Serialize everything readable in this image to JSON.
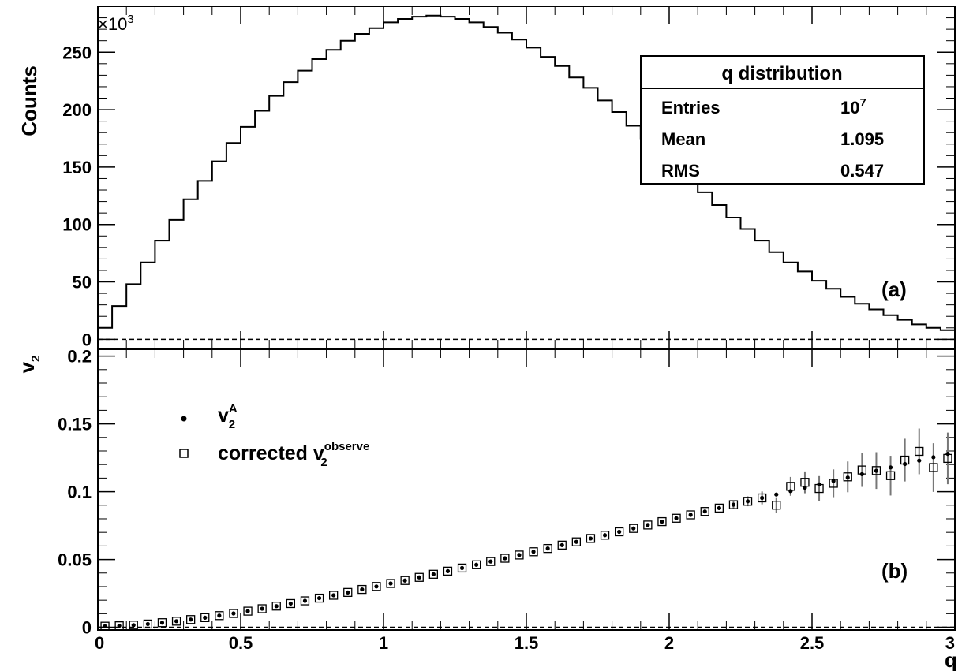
{
  "chart_data": [
    {
      "type": "histogram",
      "panel_label": "(a)",
      "ylabel": "Counts",
      "y_multiplier": "×10",
      "y_multiplier_exp": "3",
      "xlim": [
        0,
        3
      ],
      "ylim": [
        -8,
        290
      ],
      "y_ticks": [
        0,
        50,
        100,
        150,
        200,
        250
      ],
      "y_tick_labels": [
        "0",
        "50",
        "100",
        "150",
        "200",
        "250"
      ],
      "bin_width": 0.05,
      "bin_low_edges": [
        0.0,
        0.05,
        0.1,
        0.15,
        0.2,
        0.25,
        0.3,
        0.35,
        0.4,
        0.45,
        0.5,
        0.55,
        0.6,
        0.65,
        0.7,
        0.75,
        0.8,
        0.85,
        0.9,
        0.95,
        1.0,
        1.05,
        1.1,
        1.15,
        1.2,
        1.25,
        1.3,
        1.35,
        1.4,
        1.45,
        1.5,
        1.55,
        1.6,
        1.65,
        1.7,
        1.75,
        1.8,
        1.85,
        1.9,
        1.95,
        2.0,
        2.05,
        2.1,
        2.15,
        2.2,
        2.25,
        2.3,
        2.35,
        2.4,
        2.45,
        2.5,
        2.55,
        2.6,
        2.65,
        2.7,
        2.75,
        2.8,
        2.85,
        2.9,
        2.95
      ],
      "values": [
        10,
        29,
        48,
        67,
        86,
        104,
        122,
        138,
        155,
        171,
        185,
        199,
        212,
        224,
        234,
        244,
        252,
        260,
        266,
        271,
        276,
        279,
        281,
        282,
        281,
        279,
        276,
        272,
        267,
        261,
        254,
        246,
        238,
        228,
        219,
        208,
        198,
        186,
        175,
        163,
        151,
        140,
        128,
        117,
        106,
        96,
        86,
        76,
        67,
        59,
        51,
        44,
        37,
        31,
        26,
        21,
        17,
        13,
        10,
        8
      ],
      "baseline": 0,
      "stats_box": {
        "title": "q distribution",
        "rows": [
          {
            "label": "Entries",
            "value": "10",
            "value_sup": "7"
          },
          {
            "label": "Mean",
            "value": "1.095"
          },
          {
            "label": "RMS",
            "value": "0.547"
          }
        ]
      }
    },
    {
      "type": "scatter",
      "panel_label": "(b)",
      "ylabel": "v",
      "ylabel_sub": "2",
      "xlabel": "q",
      "xlim": [
        0,
        3
      ],
      "ylim": [
        -0.002,
        0.205
      ],
      "x_ticks": [
        0,
        0.5,
        1,
        1.5,
        2,
        2.5,
        3
      ],
      "x_tick_labels": [
        "0",
        "0.5",
        "1",
        "1.5",
        "2",
        "2.5",
        "3"
      ],
      "y_ticks": [
        0,
        0.05,
        0.1,
        0.15,
        0.2
      ],
      "y_tick_labels": [
        "0",
        "0.05",
        "0.1",
        "0.15",
        "0.2"
      ],
      "baseline": 0,
      "legend": [
        {
          "marker": "dot",
          "text": "v",
          "sub": "2",
          "sup": "A"
        },
        {
          "marker": "open-square",
          "text": "corrected v",
          "sub": "2",
          "sup": "observe"
        }
      ],
      "series": [
        {
          "marker": "dot",
          "x": [
            0.025,
            0.075,
            0.125,
            0.175,
            0.225,
            0.275,
            0.325,
            0.375,
            0.425,
            0.475,
            0.525,
            0.575,
            0.625,
            0.675,
            0.725,
            0.775,
            0.825,
            0.875,
            0.925,
            0.975,
            1.025,
            1.075,
            1.125,
            1.175,
            1.225,
            1.275,
            1.325,
            1.375,
            1.425,
            1.475,
            1.525,
            1.575,
            1.625,
            1.675,
            1.725,
            1.775,
            1.825,
            1.875,
            1.925,
            1.975,
            2.025,
            2.075,
            2.125,
            2.175,
            2.225,
            2.275,
            2.325,
            2.375,
            2.425,
            2.475,
            2.525,
            2.575,
            2.625,
            2.675,
            2.725,
            2.775,
            2.825,
            2.875,
            2.925,
            2.975
          ],
          "y": [
            0.0008,
            0.0011,
            0.0016,
            0.0024,
            0.0034,
            0.0045,
            0.0057,
            0.0071,
            0.0086,
            0.0102,
            0.0119,
            0.0137,
            0.0156,
            0.0175,
            0.0195,
            0.0215,
            0.0236,
            0.0257,
            0.0279,
            0.0301,
            0.0323,
            0.0345,
            0.0368,
            0.0391,
            0.0414,
            0.0437,
            0.0461,
            0.0485,
            0.0509,
            0.0533,
            0.0557,
            0.0581,
            0.0606,
            0.063,
            0.0655,
            0.0679,
            0.0704,
            0.0729,
            0.0754,
            0.0779,
            0.0804,
            0.0829,
            0.0854,
            0.0879,
            0.0904,
            0.0929,
            0.0954,
            0.0979,
            0.1004,
            0.1029,
            0.1054,
            0.1079,
            0.1104,
            0.1129,
            0.1154,
            0.1179,
            0.1204,
            0.1229,
            0.1254,
            0.1279
          ]
        }
      ]
    }
  ]
}
